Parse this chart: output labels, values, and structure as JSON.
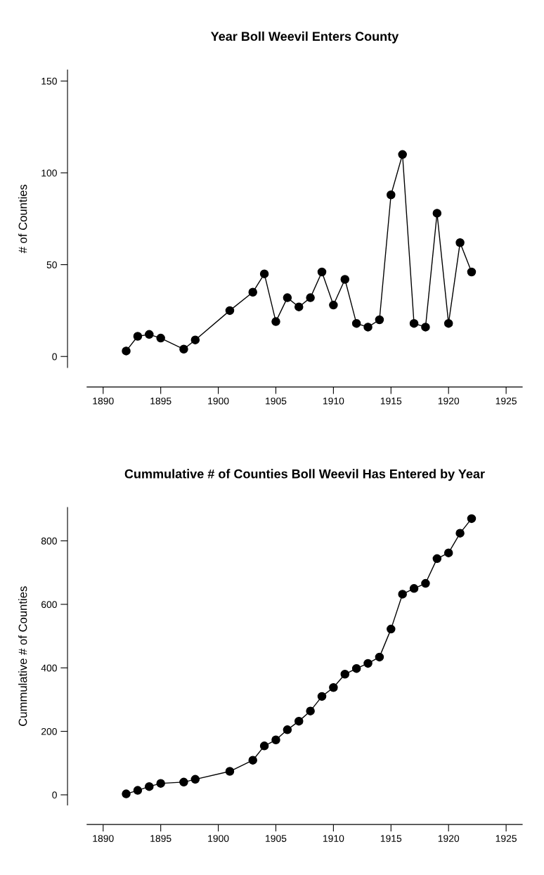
{
  "chart_data": [
    {
      "type": "line",
      "title": "Year Boll Weevil Enters County",
      "ylabel": "# of Counties",
      "marker": "circle",
      "grid": false,
      "xlim": [
        1888.6,
        1926.4
      ],
      "xticks": [
        1890,
        1895,
        1900,
        1905,
        1910,
        1915,
        1920,
        1925
      ],
      "ylim": [
        -6,
        156
      ],
      "yticks": [
        0,
        50,
        100,
        150
      ],
      "x": [
        1892,
        1893,
        1894,
        1895,
        1897,
        1898,
        1901,
        1903,
        1904,
        1905,
        1906,
        1907,
        1908,
        1909,
        1910,
        1911,
        1912,
        1913,
        1914,
        1915,
        1916,
        1917,
        1918,
        1919,
        1920,
        1921,
        1922
      ],
      "series": [
        {
          "color": "#000000",
          "values": [
            3,
            11,
            12,
            10,
            4,
            9,
            25,
            35,
            45,
            19,
            32,
            27,
            32,
            46,
            28,
            42,
            18,
            16,
            20,
            88,
            110,
            18,
            16,
            78,
            18,
            62,
            46
          ]
        }
      ]
    },
    {
      "type": "line",
      "title": "Cummulative # of Counties Boll Weevil Has Entered by Year",
      "ylabel": "Cummulative # of Counties",
      "marker": "circle",
      "grid": false,
      "xlim": [
        1888.6,
        1926.4
      ],
      "xticks": [
        1890,
        1895,
        1900,
        1905,
        1910,
        1915,
        1920,
        1925
      ],
      "ylim": [
        -32,
        905
      ],
      "yticks": [
        0,
        200,
        400,
        600,
        800
      ],
      "x": [
        1892,
        1893,
        1894,
        1895,
        1897,
        1898,
        1901,
        1903,
        1904,
        1905,
        1906,
        1907,
        1908,
        1909,
        1910,
        1911,
        1912,
        1913,
        1914,
        1915,
        1916,
        1917,
        1918,
        1919,
        1920,
        1921,
        1922
      ],
      "series": [
        {
          "color": "#000000",
          "values": [
            3,
            14,
            26,
            36,
            40,
            49,
            74,
            109,
            154,
            173,
            205,
            232,
            264,
            310,
            338,
            380,
            398,
            414,
            434,
            522,
            632,
            650,
            666,
            744,
            762,
            824,
            870
          ]
        }
      ]
    }
  ]
}
